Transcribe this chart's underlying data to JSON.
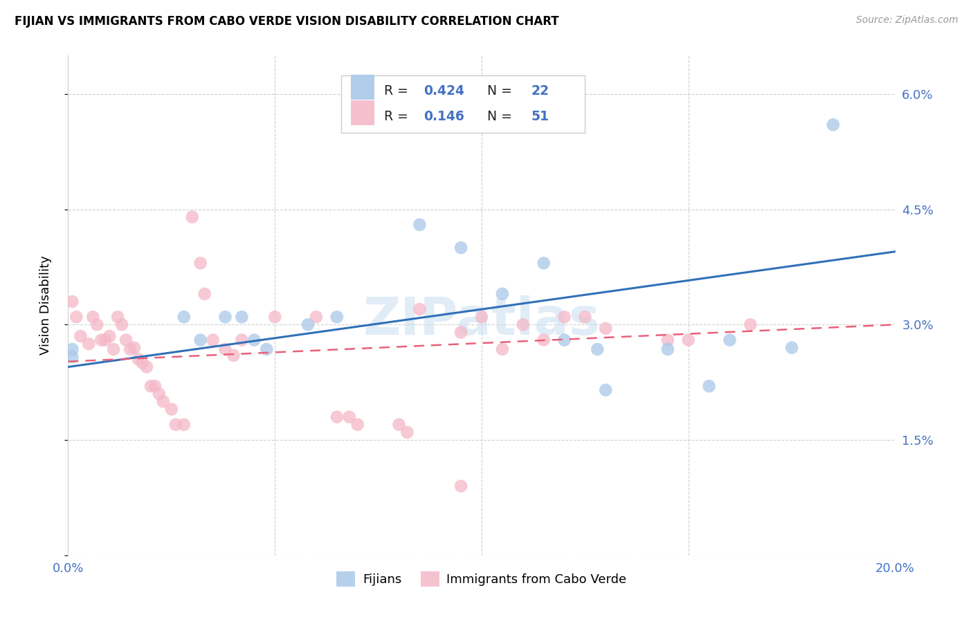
{
  "title": "FIJIAN VS IMMIGRANTS FROM CABO VERDE VISION DISABILITY CORRELATION CHART",
  "source": "Source: ZipAtlas.com",
  "ylabel_label": "Vision Disability",
  "x_min": 0.0,
  "x_max": 0.2,
  "y_min": 0.0,
  "y_max": 0.065,
  "ytick_vals": [
    0.0,
    0.015,
    0.03,
    0.045,
    0.06
  ],
  "ytick_labels": [
    "",
    "1.5%",
    "3.0%",
    "4.5%",
    "6.0%"
  ],
  "xtick_vals": [
    0.0,
    0.05,
    0.1,
    0.15,
    0.2
  ],
  "xtick_labels": [
    "0.0%",
    "",
    "",
    "",
    "20.0%"
  ],
  "watermark": "ZIPatlas",
  "fijian_color": "#a8c8e8",
  "cabo_verde_color": "#f4b8c8",
  "fijian_line_color": "#3070b8",
  "cabo_verde_line_color": "#e8607a",
  "fijian_points": [
    [
      0.001,
      0.0268
    ],
    [
      0.001,
      0.0258
    ],
    [
      0.028,
      0.031
    ],
    [
      0.032,
      0.028
    ],
    [
      0.038,
      0.031
    ],
    [
      0.042,
      0.031
    ],
    [
      0.045,
      0.028
    ],
    [
      0.048,
      0.0268
    ],
    [
      0.058,
      0.03
    ],
    [
      0.065,
      0.031
    ],
    [
      0.085,
      0.043
    ],
    [
      0.095,
      0.04
    ],
    [
      0.105,
      0.034
    ],
    [
      0.115,
      0.038
    ],
    [
      0.12,
      0.028
    ],
    [
      0.128,
      0.0268
    ],
    [
      0.13,
      0.0215
    ],
    [
      0.145,
      0.0268
    ],
    [
      0.155,
      0.022
    ],
    [
      0.16,
      0.028
    ],
    [
      0.175,
      0.027
    ],
    [
      0.185,
      0.056
    ]
  ],
  "cabo_verde_points": [
    [
      0.001,
      0.033
    ],
    [
      0.002,
      0.031
    ],
    [
      0.003,
      0.0285
    ],
    [
      0.005,
      0.0275
    ],
    [
      0.006,
      0.031
    ],
    [
      0.007,
      0.03
    ],
    [
      0.008,
      0.028
    ],
    [
      0.009,
      0.028
    ],
    [
      0.01,
      0.0285
    ],
    [
      0.011,
      0.0268
    ],
    [
      0.012,
      0.031
    ],
    [
      0.013,
      0.03
    ],
    [
      0.014,
      0.028
    ],
    [
      0.015,
      0.0268
    ],
    [
      0.016,
      0.027
    ],
    [
      0.017,
      0.0255
    ],
    [
      0.018,
      0.025
    ],
    [
      0.019,
      0.0245
    ],
    [
      0.02,
      0.022
    ],
    [
      0.021,
      0.022
    ],
    [
      0.022,
      0.021
    ],
    [
      0.023,
      0.02
    ],
    [
      0.025,
      0.019
    ],
    [
      0.026,
      0.017
    ],
    [
      0.028,
      0.017
    ],
    [
      0.03,
      0.044
    ],
    [
      0.032,
      0.038
    ],
    [
      0.033,
      0.034
    ],
    [
      0.035,
      0.028
    ],
    [
      0.038,
      0.0268
    ],
    [
      0.04,
      0.026
    ],
    [
      0.042,
      0.028
    ],
    [
      0.05,
      0.031
    ],
    [
      0.06,
      0.031
    ],
    [
      0.065,
      0.018
    ],
    [
      0.068,
      0.018
    ],
    [
      0.07,
      0.017
    ],
    [
      0.08,
      0.017
    ],
    [
      0.082,
      0.016
    ],
    [
      0.085,
      0.032
    ],
    [
      0.095,
      0.029
    ],
    [
      0.1,
      0.031
    ],
    [
      0.105,
      0.0268
    ],
    [
      0.11,
      0.03
    ],
    [
      0.115,
      0.028
    ],
    [
      0.12,
      0.031
    ],
    [
      0.125,
      0.031
    ],
    [
      0.13,
      0.0295
    ],
    [
      0.145,
      0.028
    ],
    [
      0.15,
      0.028
    ],
    [
      0.165,
      0.03
    ],
    [
      0.095,
      0.009
    ]
  ],
  "fijian_trend_x": [
    0.0,
    0.2
  ],
  "fijian_trend_y": [
    0.0245,
    0.0395
  ],
  "cabo_trend_x": [
    0.0,
    0.2
  ],
  "cabo_trend_y": [
    0.0252,
    0.03
  ]
}
